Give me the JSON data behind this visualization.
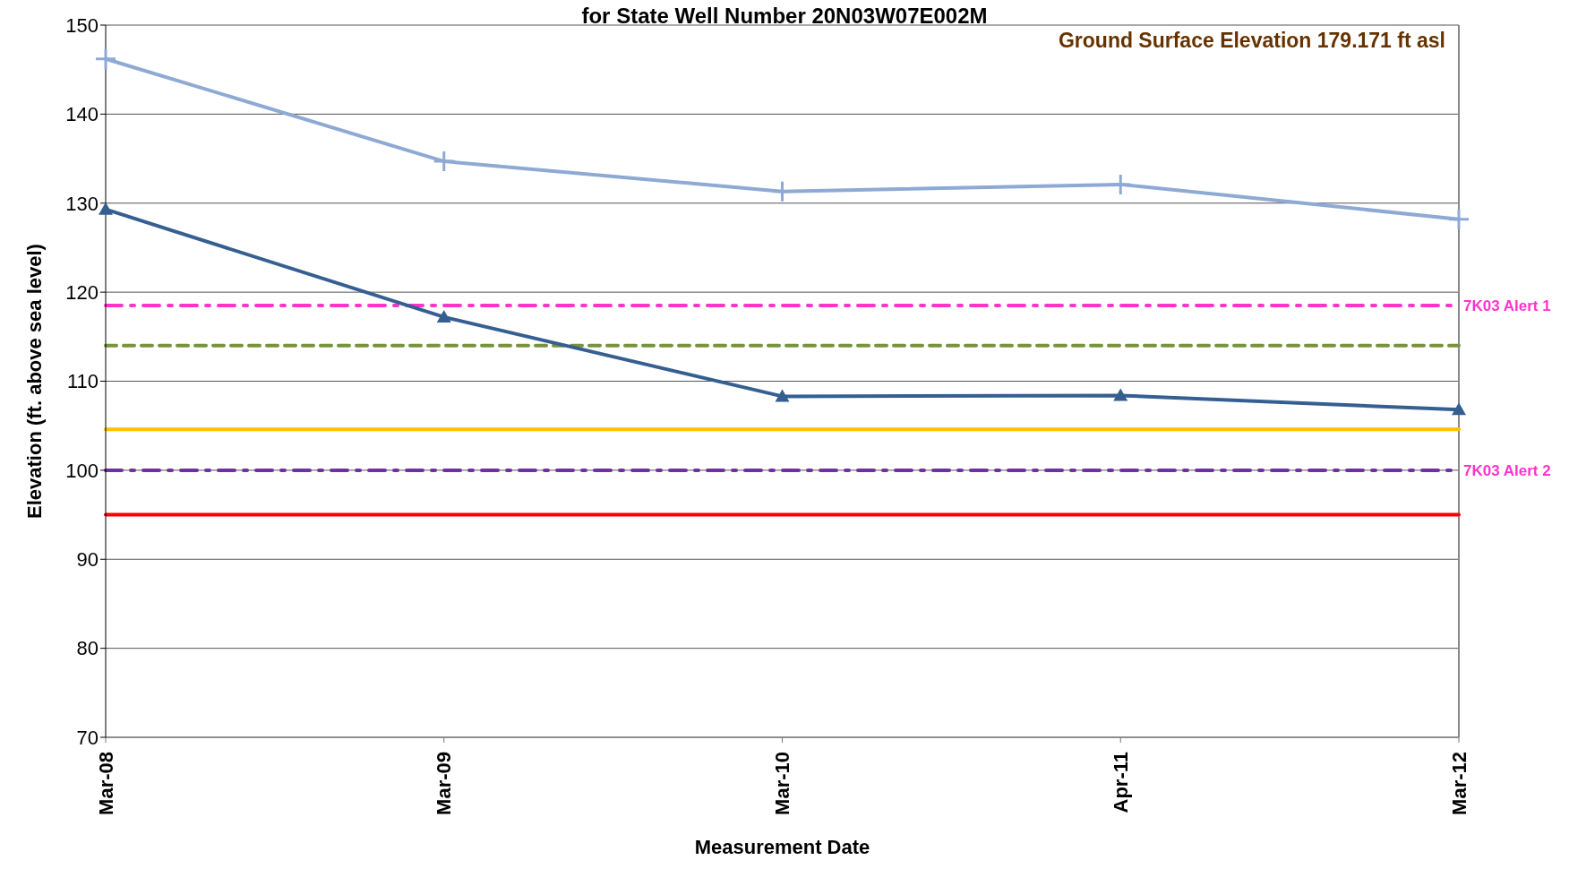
{
  "chart_data": {
    "type": "line",
    "title": "for State Well Number 20N03W07E002M",
    "xlabel": "Measurement Date",
    "ylabel": "Elevation (ft. above sea level)",
    "annotations": [
      "Ground Surface Elevation 179.171 ft asl"
    ],
    "categories": [
      "Mar-08",
      "Mar-09",
      "Mar-10",
      "Apr-11",
      "Mar-12"
    ],
    "series": [
      {
        "color": "#8eaad4",
        "marker": "cross",
        "values": [
          146.2,
          134.7,
          131.3,
          132.1,
          128.2
        ]
      },
      {
        "color": "#365f91",
        "marker": "triangle",
        "values": [
          129.3,
          117.2,
          108.3,
          108.4,
          106.8
        ]
      }
    ],
    "ylim": [
      70,
      150
    ],
    "yticks": [
      70,
      80,
      90,
      100,
      110,
      120,
      130,
      140,
      150
    ],
    "grid": "y",
    "legend": false,
    "ref_lines": [
      {
        "axis": "y",
        "value": 118.5,
        "label": "7K03 Alert 1",
        "color": "#ff33cc",
        "line_style": "dashdot"
      },
      {
        "axis": "y",
        "value": 114,
        "label": null,
        "color": "#77933c",
        "line_style": "dashed"
      },
      {
        "axis": "y",
        "value": 104.6,
        "label": null,
        "color": "#ffc000",
        "line_style": "solid"
      },
      {
        "axis": "y",
        "value": 100,
        "label": "7K03 Alert 2",
        "color": "#7030a0",
        "line_style": "dashdot"
      },
      {
        "axis": "y",
        "value": 95,
        "label": null,
        "color": "#ff0000",
        "line_style": "solid"
      }
    ]
  }
}
